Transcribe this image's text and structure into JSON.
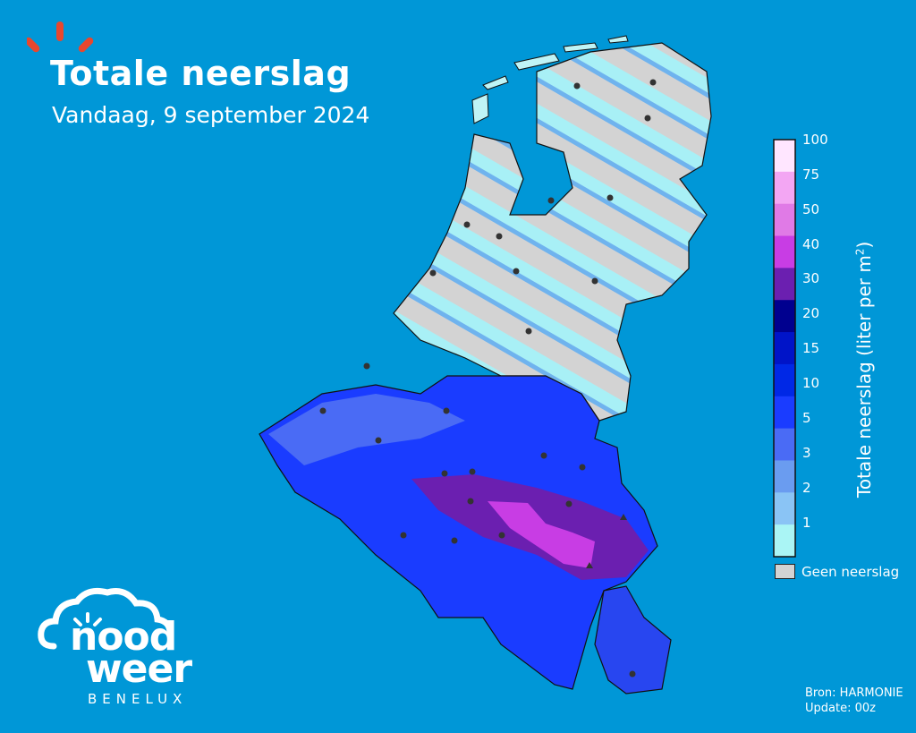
{
  "header": {
    "title": "Totale neerslag",
    "subtitle": "Vandaag, 9 september 2024"
  },
  "legend": {
    "title": "Totale neerslag (liter per m",
    "title_sup": "2",
    "title_end": ")",
    "ticks": [
      "100",
      "75",
      "50",
      "40",
      "30",
      "20",
      "15",
      "10",
      "5",
      "3",
      "2",
      "1"
    ],
    "colors": [
      "#ffe6ff",
      "#f3a6f3",
      "#e07ae6",
      "#c83de4",
      "#6b1fb0",
      "#00008f",
      "#0014c8",
      "#0028e6",
      "#1a3cff",
      "#4a6bf5",
      "#6a9cf0",
      "#8ac4f5",
      "#aaf5f5"
    ],
    "no_precip_label": "Geen neerslag",
    "no_precip_color": "#d3d3d3"
  },
  "source": {
    "line1": "Bron: HARMONIE",
    "line2": "Update: 00z"
  },
  "logo": {
    "word1": "nood",
    "word2": "weer",
    "region": "BENELUX"
  },
  "colors": {
    "background": "#0097d7",
    "accent": "#e8472e"
  }
}
